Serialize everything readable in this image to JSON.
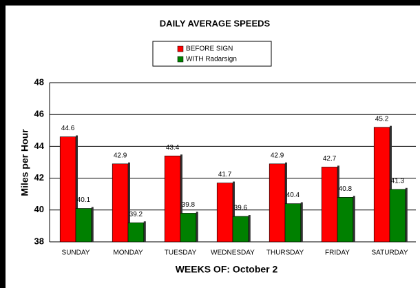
{
  "chart_data": {
    "type": "bar",
    "title": "DAILY AVERAGE SPEEDS",
    "categories": [
      "SUNDAY",
      "MONDAY",
      "TUESDAY",
      "WEDNESDAY",
      "THURSDAY",
      "FRIDAY",
      "SATURDAY"
    ],
    "series": [
      {
        "name": "BEFORE SIGN",
        "color": "#ff0000",
        "values": [
          44.6,
          42.9,
          43.4,
          41.7,
          42.9,
          42.7,
          45.2
        ]
      },
      {
        "name": "WITH Radarsign",
        "color": "#008000",
        "values": [
          40.1,
          39.2,
          39.8,
          39.6,
          40.4,
          40.8,
          41.3
        ]
      }
    ],
    "ylim": [
      38,
      48
    ],
    "yticks": [
      38,
      40,
      42,
      44,
      46,
      48
    ],
    "grid": true,
    "y_label": "Miles per Hour",
    "x_label": "WEEKS OF: October 2",
    "legend": "top"
  }
}
